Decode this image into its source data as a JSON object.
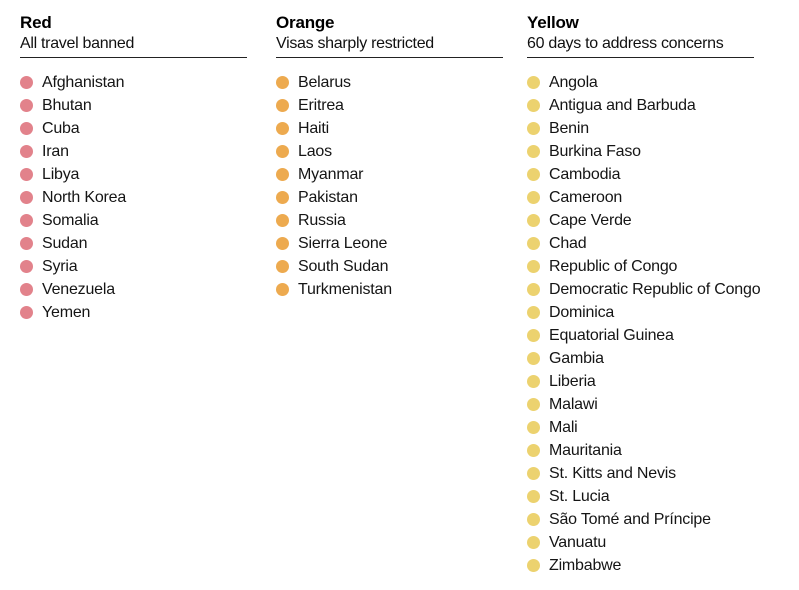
{
  "chart_data": {
    "type": "table",
    "groups": [
      {
        "title": "Red",
        "subtitle": "All travel banned",
        "dot_color": "#e2828b",
        "items": [
          "Afghanistan",
          "Bhutan",
          "Cuba",
          "Iran",
          "Libya",
          "North Korea",
          "Somalia",
          "Sudan",
          "Syria",
          "Venezuela",
          "Yemen"
        ]
      },
      {
        "title": "Orange",
        "subtitle": "Visas sharply restricted",
        "dot_color": "#edaa4f",
        "items": [
          "Belarus",
          "Eritrea",
          "Haiti",
          "Laos",
          "Myanmar",
          "Pakistan",
          "Russia",
          "Sierra Leone",
          "South Sudan",
          "Turkmenistan"
        ]
      },
      {
        "title": "Yellow",
        "subtitle": "60 days to address concerns",
        "dot_color": "#ecd26f",
        "items": [
          "Angola",
          "Antigua and Barbuda",
          "Benin",
          "Burkina Faso",
          "Cambodia",
          "Cameroon",
          "Cape Verde",
          "Chad",
          "Republic of Congo",
          "Democratic Republic of Congo",
          "Dominica",
          "Equatorial Guinea",
          "Gambia",
          "Liberia",
          "Malawi",
          "Mali",
          "Mauritania",
          "St. Kitts and Nevis",
          "St. Lucia",
          "São Tomé and Príncipe",
          "Vanuatu",
          "Zimbabwe"
        ]
      }
    ]
  }
}
